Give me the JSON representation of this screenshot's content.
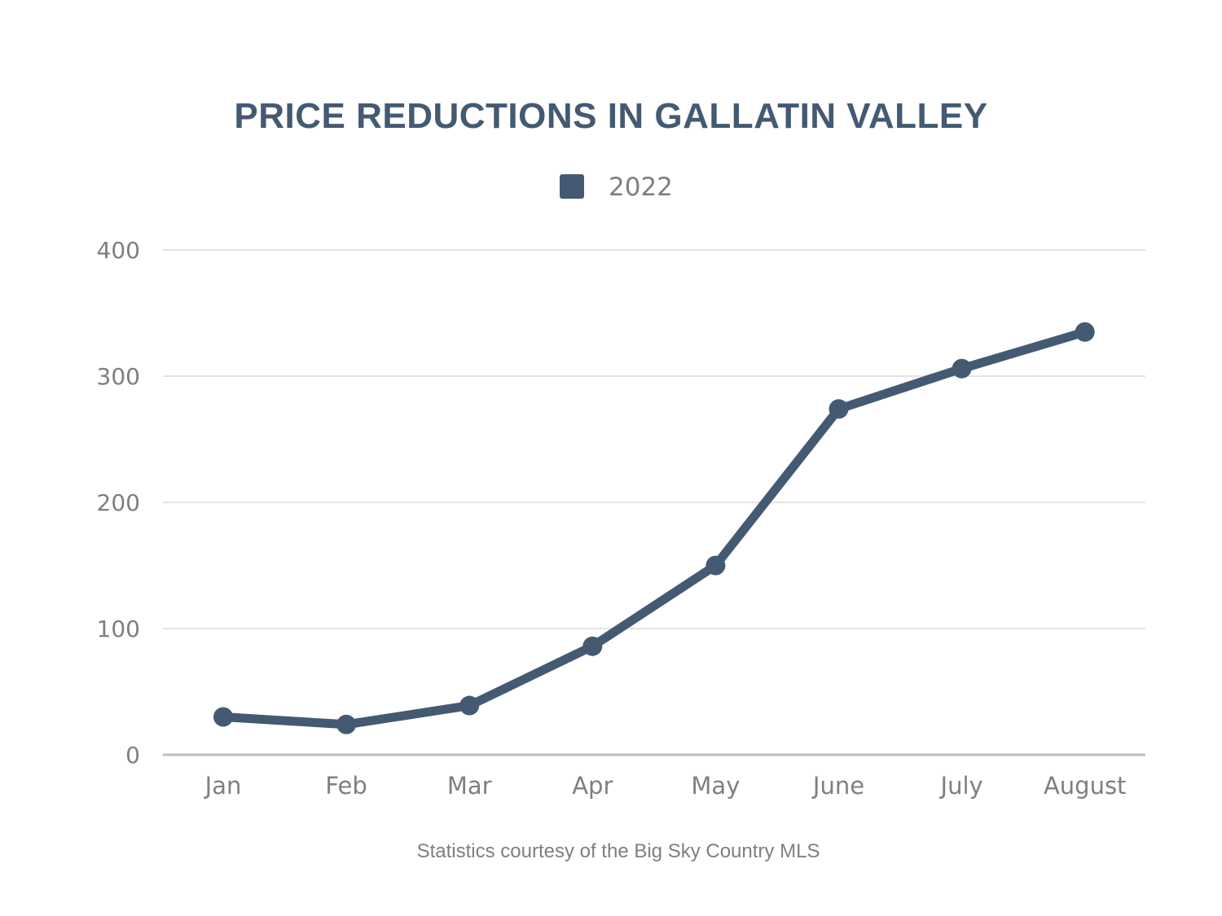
{
  "colors": {
    "series": "#445a73",
    "title": "#445a73",
    "axis_text": "#7f7f7f",
    "grid": "#e3e3e3",
    "baseline": "#bdbdbd",
    "source_text": "#7f7f7f"
  },
  "chart_data": {
    "type": "line",
    "title": "PRICE REDUCTIONS IN GALLATIN VALLEY",
    "categories": [
      "Jan",
      "Feb",
      "Mar",
      "Apr",
      "May",
      "June",
      "July",
      "August"
    ],
    "series": [
      {
        "name": "2022",
        "values": [
          30,
          24,
          39,
          86,
          150,
          274,
          306,
          335
        ]
      }
    ],
    "xlabel": "",
    "ylabel": "",
    "ylim": [
      0,
      400
    ],
    "yticks": [
      0,
      100,
      200,
      300,
      400
    ],
    "ytick_labels": [
      "0",
      "100",
      "200",
      "300",
      "400"
    ],
    "grid": true,
    "legend": {
      "position": "top-center",
      "entries": [
        "2022"
      ]
    },
    "markers": true,
    "source_note": "Statistics courtesy of the Big Sky Country MLS"
  }
}
